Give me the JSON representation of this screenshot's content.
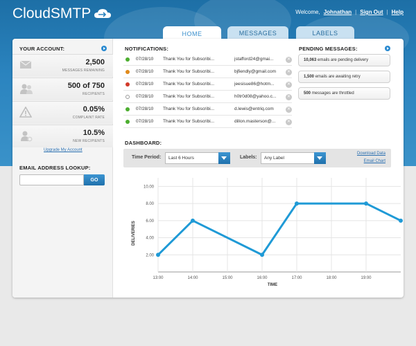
{
  "app": {
    "logo": "CloudSMTP"
  },
  "topnav": {
    "welcome": "Welcome,",
    "user": "Johnathan",
    "signout": "Sign Out",
    "help": "Help",
    "sep": "|"
  },
  "tabs": [
    {
      "label": "HOME"
    },
    {
      "label": "MESSAGES"
    },
    {
      "label": "LABELS"
    }
  ],
  "account": {
    "title": "YOUR ACCOUNT:",
    "stats": [
      {
        "value": "2,500",
        "label": "MESSAGES REMAINING",
        "icon": "mail-icon"
      },
      {
        "value": "500 of 750",
        "label": "RECIPIENTS",
        "icon": "users-icon"
      },
      {
        "value": "0.05%",
        "label": "COMPLAINT RATE",
        "icon": "warning-icon"
      },
      {
        "value": "10.5%",
        "label": "NEW RECIPIENTS",
        "icon": "add-user-icon"
      }
    ],
    "upgrade": "Upgrade My Account"
  },
  "lookup": {
    "title": "EMAIL ADDRESS LOOKUP:",
    "placeholder": "",
    "button": "GO"
  },
  "notifications": {
    "title": "NOTIFICATIONS:",
    "items": [
      {
        "status_color": "#4cae2f",
        "date": "07/28/10",
        "subject": "Thank You for Subscribi...",
        "email": "jstafford24@gmai..."
      },
      {
        "status_color": "#e08a1c",
        "date": "07/28/10",
        "subject": "Thank You for Subscribi...",
        "email": "bjfiendly@gmail.com"
      },
      {
        "status_color": "#d23a2a",
        "date": "07/28/10",
        "subject": "Thank You for Subscribi...",
        "email": "jeesisue86@hotm..."
      },
      {
        "status_color": "#ffffff",
        "date": "07/28/10",
        "subject": "Thank You for Subscribi...",
        "email": "h0tr0d08@yahoo.c..."
      },
      {
        "status_color": "#4cae2f",
        "date": "07/28/10",
        "subject": "Thank You for Subscribi...",
        "email": "d.lewis@entriq.com"
      },
      {
        "status_color": "#4cae2f",
        "date": "07/28/10",
        "subject": "Thank You for Subscribi...",
        "email": "dillon.masterson@..."
      }
    ]
  },
  "pending": {
    "title": "PENDING MESSAGES:",
    "items": [
      {
        "count": "10,063",
        "text": "emails are pending delivery"
      },
      {
        "count": "1,500",
        "text": "emails are awaiting retry"
      },
      {
        "count": "500",
        "text": "messages are throttled"
      }
    ]
  },
  "dashboard": {
    "title": "DASHBOARD:",
    "time_label": "Time Period:",
    "time_value": "Last 6 Hours",
    "labels_label": "Labels:",
    "labels_value": "Any Label",
    "download": "Download Data",
    "email_chart": "Email Chart"
  },
  "chart_data": {
    "type": "line",
    "xlabel": "TIME",
    "ylabel": "DELIVERIES",
    "x_ticks": [
      "13:00",
      "14:00",
      "15:00",
      "16:00",
      "17:00",
      "18:00",
      "19:00"
    ],
    "y_ticks": [
      "2.00",
      "4.00",
      "6.00",
      "8.00",
      "10.00"
    ],
    "xlim": [
      13,
      20
    ],
    "ylim": [
      0,
      11
    ],
    "x": [
      13,
      14,
      16,
      17,
      19,
      20
    ],
    "values": [
      2,
      6,
      2,
      8,
      8,
      6
    ],
    "color": "#1f9ad6",
    "grid": true
  }
}
